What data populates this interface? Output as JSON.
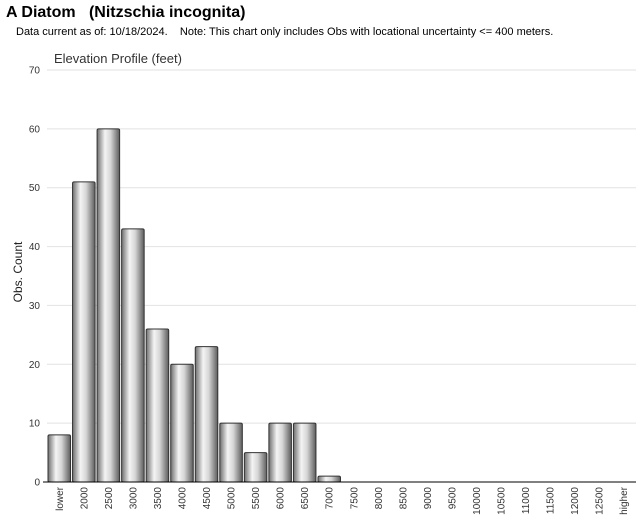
{
  "header": {
    "title": "A Diatom   (Nitzschia incognita)",
    "subtitle": "Data current as of: 10/18/2024.    Note: This chart only includes Obs with locational uncertainty <= 400 meters."
  },
  "chart_data": {
    "type": "bar",
    "title": "Elevation Profile (feet)",
    "xlabel": "",
    "ylabel": "Obs. Count",
    "ylim": [
      0,
      70
    ],
    "yticks": [
      0,
      10,
      20,
      30,
      40,
      50,
      60,
      70
    ],
    "grid": true,
    "categories": [
      "lower",
      "2000",
      "2500",
      "3000",
      "3500",
      "4000",
      "4500",
      "5000",
      "5500",
      "6000",
      "6500",
      "7000",
      "7500",
      "8000",
      "8500",
      "9000",
      "9500",
      "10000",
      "10500",
      "11000",
      "11500",
      "12000",
      "12500",
      "higher"
    ],
    "values": [
      8,
      51,
      60,
      43,
      26,
      20,
      23,
      10,
      5,
      10,
      10,
      1,
      0,
      0,
      0,
      0,
      0,
      0,
      0,
      0,
      0,
      0,
      0,
      0
    ]
  }
}
